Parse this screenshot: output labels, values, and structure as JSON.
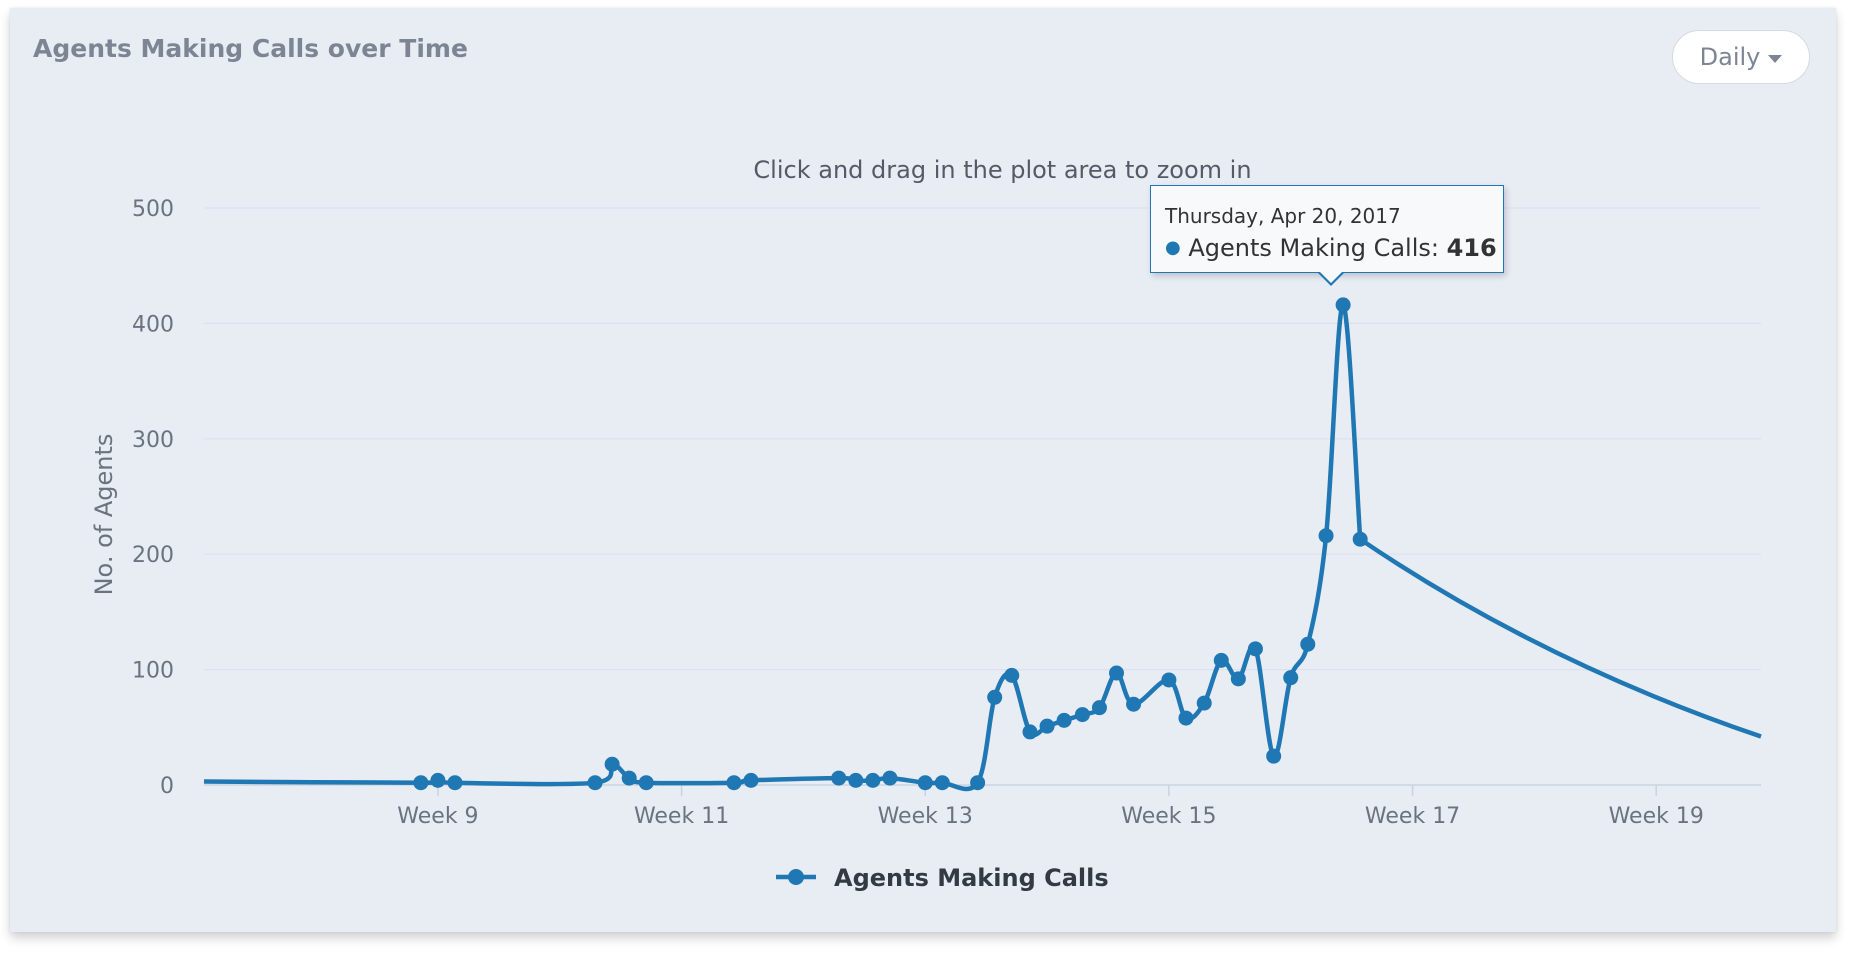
{
  "card": {
    "title": "Agents Making Calls over Time",
    "range_button": "Daily"
  },
  "colors": {
    "series": "#1f77b4",
    "background": "#e8ecf3",
    "gridline": "#dde2ea",
    "axis_text": "#6b7380"
  },
  "tooltip": {
    "date": "Thursday, Apr 20, 2017",
    "series_label": "Agents Making Calls: ",
    "value": "416"
  },
  "chart_data": {
    "type": "line",
    "subtitle": "Click and drag in the plot area to zoom in",
    "ylabel": "No. of Agents",
    "ylim": [
      0,
      500
    ],
    "yticks": [
      0,
      100,
      200,
      300,
      400,
      500
    ],
    "xlim": [
      7.08,
      19.86
    ],
    "xticks": [
      {
        "value": 9,
        "label": "Week 9"
      },
      {
        "value": 11,
        "label": "Week 11"
      },
      {
        "value": 13,
        "label": "Week 13"
      },
      {
        "value": 15,
        "label": "Week 15"
      },
      {
        "value": 17,
        "label": "Week 17"
      },
      {
        "value": 19,
        "label": "Week 19"
      }
    ],
    "grid": true,
    "legend": "bottom-center",
    "highlight_index": 50,
    "series": [
      {
        "name": "Agents Making Calls",
        "points": [
          [
            8.86,
            2
          ],
          [
            9.0,
            4
          ],
          [
            9.14,
            2
          ],
          [
            10.29,
            2
          ],
          [
            10.43,
            18
          ],
          [
            10.57,
            6
          ],
          [
            10.71,
            2
          ],
          [
            11.43,
            2
          ],
          [
            11.57,
            4
          ],
          [
            12.29,
            6
          ],
          [
            12.43,
            4
          ],
          [
            12.57,
            4
          ],
          [
            12.71,
            6
          ],
          [
            13.0,
            2
          ],
          [
            13.14,
            2
          ],
          [
            13.43,
            2
          ],
          [
            13.57,
            76
          ],
          [
            13.71,
            95
          ],
          [
            13.86,
            46
          ],
          [
            14.0,
            51
          ],
          [
            14.14,
            56
          ],
          [
            14.29,
            61
          ],
          [
            14.43,
            67
          ],
          [
            14.57,
            97
          ],
          [
            14.71,
            70
          ],
          [
            15.0,
            91
          ],
          [
            15.14,
            58
          ],
          [
            15.29,
            71
          ],
          [
            15.43,
            108
          ],
          [
            15.57,
            92
          ],
          [
            15.71,
            118
          ],
          [
            15.86,
            25
          ],
          [
            16.0,
            93
          ],
          [
            16.14,
            122
          ],
          [
            16.29,
            216
          ],
          [
            16.43,
            416
          ],
          [
            16.57,
            213
          ]
        ],
        "extension_points": [
          [
            7.08,
            3
          ],
          [
            16.57,
            213
          ],
          [
            19.86,
            42
          ]
        ]
      }
    ]
  }
}
